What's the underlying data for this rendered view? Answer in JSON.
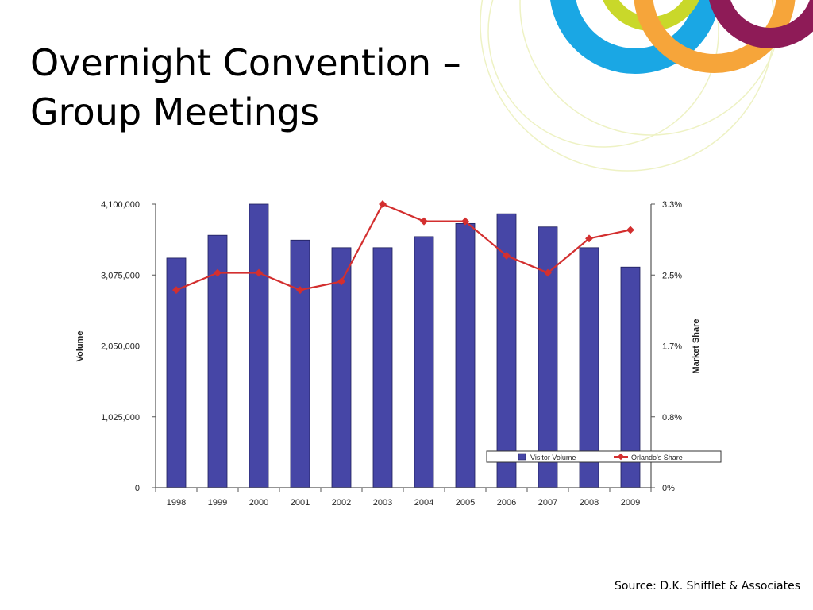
{
  "slide": {
    "title_line1": "Overnight Convention –",
    "title_line2": "Group Meetings",
    "source": "Source: D.K. Shifflet & Associates"
  },
  "colors": {
    "ring_blue": "#1AA7E4",
    "ring_lime": "#C9D82A",
    "ring_orange": "#F6A53A",
    "ring_purple": "#8E1B57",
    "ring_thin": "#EEF2C4",
    "bar": "#4646A6",
    "line": "#D32F2F"
  },
  "chart_data": {
    "type": "bar",
    "categories": [
      "1998",
      "1999",
      "2000",
      "2001",
      "2002",
      "2003",
      "2004",
      "2005",
      "2006",
      "2007",
      "2008",
      "2009"
    ],
    "series": [
      {
        "name": "Visitor Volume",
        "type": "bar",
        "axis": "left",
        "values": [
          3320000,
          3650000,
          4100000,
          3580000,
          3470000,
          3470000,
          3630000,
          3820000,
          3960000,
          3770000,
          3470000,
          3190000
        ]
      },
      {
        "name": "Orlando's Share",
        "type": "line",
        "axis": "right",
        "values": [
          2.3,
          2.5,
          2.5,
          2.3,
          2.4,
          3.3,
          3.1,
          3.1,
          2.7,
          2.5,
          2.9,
          3.0
        ]
      }
    ],
    "ylabel": "Volume",
    "y2label": "Market Share",
    "ylim": [
      0,
      4100000
    ],
    "y2lim": [
      0,
      3.3
    ],
    "yticks": [
      "0",
      "1,025,000",
      "2,050,000",
      "3,075,000",
      "4,100,000"
    ],
    "y2ticks": [
      "0%",
      "0.8%",
      "1.7%",
      "2.5%",
      "3.3%"
    ],
    "legend_position": "bottom-right",
    "legend": [
      "Visitor Volume",
      "Orlando's Share"
    ]
  }
}
